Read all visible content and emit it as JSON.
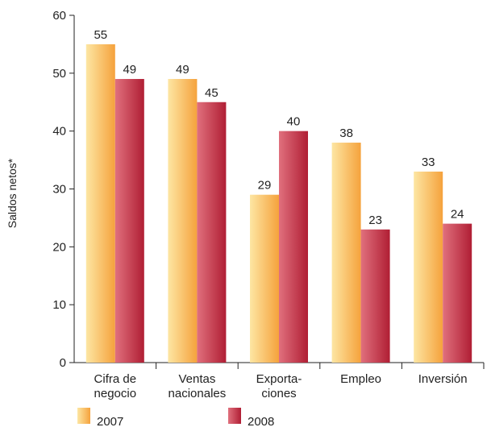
{
  "chart_data": {
    "type": "bar",
    "ylabel": "Saldos netos*",
    "ylim": [
      0,
      60
    ],
    "yticks": [
      "0",
      "10",
      "20",
      "30",
      "40",
      "50",
      "60"
    ],
    "categories": [
      [
        "Cifra de",
        "negocio"
      ],
      [
        "Ventas",
        "nacionales"
      ],
      [
        "Exporta-",
        "ciones"
      ],
      [
        "Empleo"
      ],
      [
        "Inversión"
      ]
    ],
    "series": [
      {
        "name": "2007",
        "values": [
          55,
          49,
          29,
          38,
          33
        ],
        "labels": [
          "55",
          "49",
          "29",
          "38",
          "33"
        ],
        "color_light": "#fde6a3",
        "color_dark": "#f5a23c"
      },
      {
        "name": "2008",
        "values": [
          49,
          45,
          40,
          23,
          24
        ],
        "labels": [
          "49",
          "45",
          "40",
          "23",
          "24"
        ],
        "color_light": "#e0707d",
        "color_dark": "#b01e34"
      }
    ],
    "grid": false,
    "legend_position": "bottom"
  }
}
